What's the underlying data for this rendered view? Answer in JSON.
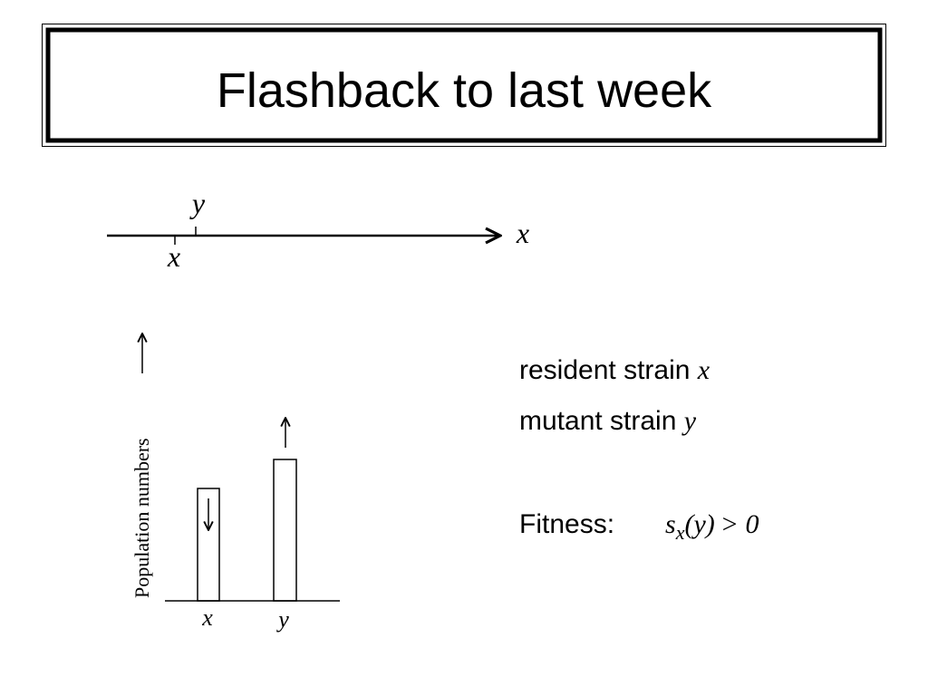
{
  "title": "Flashback to last week",
  "trait_axis": {
    "mutant_label": "y",
    "resident_label": "x",
    "axis_label": "x"
  },
  "population_plot": {
    "y_axis_label": "Population numbers",
    "bars": [
      {
        "label": "x"
      },
      {
        "label": "y"
      }
    ]
  },
  "legend": {
    "resident": {
      "text": "resident strain",
      "symbol": "x"
    },
    "mutant": {
      "text": "mutant strain",
      "symbol": "y"
    }
  },
  "fitness": {
    "label": "Fitness:",
    "function": "s",
    "subscript": "x",
    "argument": "(y)",
    "relation": "> 0"
  }
}
